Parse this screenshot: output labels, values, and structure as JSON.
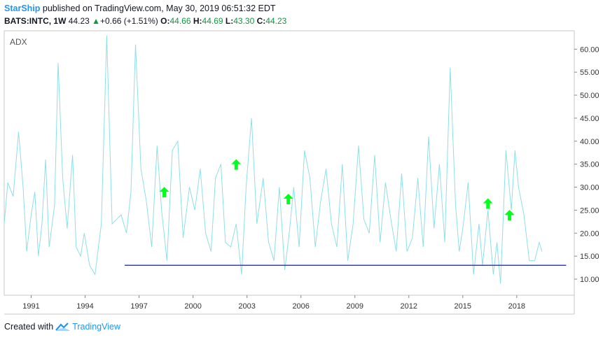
{
  "header": {
    "author": "StarShip",
    "published_text": "published on TradingView.com, May 30, 2019 06:51:32 EDT",
    "symbol": "BATS:INTC, 1W",
    "price": "44.23",
    "change_arrow": "▲",
    "change": "+0.66 (+1.51%)",
    "open_label": "O:",
    "open": "44.66",
    "high_label": "H:",
    "high": "44.69",
    "low_label": "L:",
    "low": "43.30",
    "close_label": "C:",
    "close": "44.23"
  },
  "footer": {
    "created_with": "Created with",
    "brand": "TradingView"
  },
  "colors": {
    "line": "#8ee0e6",
    "support": "#2f3fd6",
    "arrow": "#00ff1a",
    "brand": "#2196f3"
  },
  "chart_data": {
    "type": "line",
    "title": "ADX",
    "ylim": [
      6.5,
      64
    ],
    "y_ticks": [
      10,
      15,
      20,
      25,
      30,
      35,
      40,
      45,
      50,
      55,
      60
    ],
    "y_tick_labels": [
      "10.00",
      "15.00",
      "20.00",
      "25.00",
      "30.00",
      "35.00",
      "40.00",
      "45.00",
      "50.00",
      "55.00",
      "60.00"
    ],
    "x_ticks": [
      1991,
      1994,
      1997,
      2000,
      2003,
      2006,
      2009,
      2012,
      2015,
      2018
    ],
    "x_tick_labels": [
      "1991",
      "1994",
      "1997",
      "2000",
      "2003",
      "2006",
      "2009",
      "2012",
      "2015",
      "2018"
    ],
    "xlim": [
      1989.5,
      2021.2
    ],
    "series": [
      {
        "x": [
          1989.5,
          1989.7,
          1990.0,
          1990.3,
          1990.55,
          1990.75,
          1991.0,
          1991.2,
          1991.4,
          1991.6,
          1991.8,
          1992.0,
          1992.3,
          1992.5,
          1992.75,
          1993.0,
          1993.3,
          1993.5,
          1993.75,
          1993.95,
          1994.25,
          1994.55,
          1994.9,
          1995.2,
          1995.5,
          1995.75,
          1996.0,
          1996.3,
          1996.55,
          1996.8,
          1997.1,
          1997.4,
          1997.7,
          1998.0,
          1998.25,
          1998.55,
          1998.85,
          1999.15,
          1999.45,
          1999.8,
          2000.1,
          2000.4,
          2000.7,
          2001.0,
          2001.25,
          2001.55,
          2001.8,
          2002.1,
          2002.4,
          2002.7,
          2002.95,
          2003.25,
          2003.55,
          2003.9,
          2004.2,
          2004.5,
          2004.8,
          2005.1,
          2005.35,
          2005.6,
          2005.9,
          2006.2,
          2006.5,
          2006.8,
          2007.1,
          2007.4,
          2007.7,
          2008.0,
          2008.3,
          2008.6,
          2008.9,
          2009.2,
          2009.5,
          2009.8,
          2010.1,
          2010.4,
          2010.7,
          2011.0,
          2011.3,
          2011.6,
          2011.9,
          2012.2,
          2012.5,
          2012.8,
          2013.1,
          2013.4,
          2013.7,
          2014.0,
          2014.3,
          2014.6,
          2014.8,
          2015.0,
          2015.3,
          2015.6,
          2015.9,
          2016.1,
          2016.4,
          2016.7,
          2016.9,
          2017.1,
          2017.4,
          2017.7,
          2017.9,
          2018.1,
          2018.4,
          2018.7,
          2019.0,
          2019.25,
          2019.4
        ],
        "y": [
          22,
          31,
          28,
          42,
          30,
          16,
          24,
          29,
          15,
          22,
          36,
          17,
          26,
          57,
          32,
          21,
          37,
          17,
          15,
          20,
          13,
          11,
          22,
          63,
          22,
          23,
          24,
          20,
          29,
          61,
          34,
          27,
          17,
          39,
          25,
          14,
          38,
          40,
          19,
          30,
          25,
          34,
          20,
          16,
          32,
          35,
          18,
          17,
          22,
          11,
          30,
          45,
          22,
          32,
          18,
          14,
          30,
          12,
          20,
          30,
          17,
          38,
          32,
          17,
          27,
          34,
          22,
          17,
          35,
          14,
          22,
          39,
          23,
          20,
          37,
          18,
          31,
          23,
          16,
          33,
          16,
          19,
          32,
          17,
          41,
          21,
          35,
          18,
          56,
          26,
          16,
          21,
          31,
          11,
          22,
          13,
          25,
          11,
          18,
          9,
          38,
          25,
          38,
          30,
          24,
          14,
          14,
          18,
          16
        ]
      }
    ],
    "annotations": {
      "support_level": 13,
      "support_from": 1996.2,
      "support_to": 2020.75,
      "arrows": [
        {
          "x": 1998.4,
          "y": 29
        },
        {
          "x": 2002.4,
          "y": 35
        },
        {
          "x": 2005.3,
          "y": 27.5
        },
        {
          "x": 2016.4,
          "y": 26.5
        },
        {
          "x": 2017.6,
          "y": 24
        }
      ]
    }
  }
}
